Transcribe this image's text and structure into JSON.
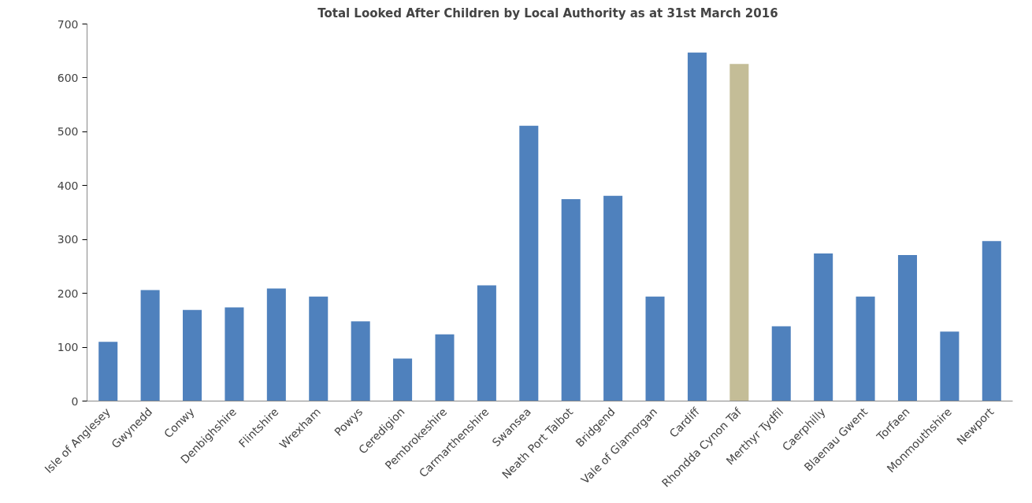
{
  "chart_data": {
    "type": "bar",
    "title": "Total Looked After Children  by Local Authority as at 31st March 2016",
    "categories": [
      "Isle of Anglesey",
      "Gwynedd",
      "Conwy",
      "Denbighshire",
      "Flintshire",
      "Wrexham",
      "Powys",
      "Ceredigion",
      "Pembrokeshire",
      "Carmarthenshire",
      "Swansea",
      "Neath Port Talbot",
      "Bridgend",
      "Vale of Glamorgan",
      "Cardiff",
      "Rhondda Cynon Taf",
      "Merthyr Tydfil",
      "Caerphilly",
      "Blaenau Gwent",
      "Torfaen",
      "Monmouthshire",
      "Newport"
    ],
    "values": [
      110,
      206,
      169,
      174,
      209,
      194,
      148,
      79,
      124,
      215,
      511,
      375,
      381,
      194,
      647,
      626,
      139,
      274,
      194,
      271,
      129,
      297
    ],
    "colors": [
      "#4f81bd",
      "#4f81bd",
      "#4f81bd",
      "#4f81bd",
      "#4f81bd",
      "#4f81bd",
      "#4f81bd",
      "#4f81bd",
      "#4f81bd",
      "#4f81bd",
      "#4f81bd",
      "#4f81bd",
      "#4f81bd",
      "#4f81bd",
      "#4f81bd",
      "#c4bd97",
      "#4f81bd",
      "#4f81bd",
      "#4f81bd",
      "#4f81bd",
      "#4f81bd",
      "#4f81bd"
    ],
    "ylim": [
      0,
      700
    ],
    "yticks": [
      0,
      100,
      200,
      300,
      400,
      500,
      600,
      700
    ],
    "grid": false
  }
}
